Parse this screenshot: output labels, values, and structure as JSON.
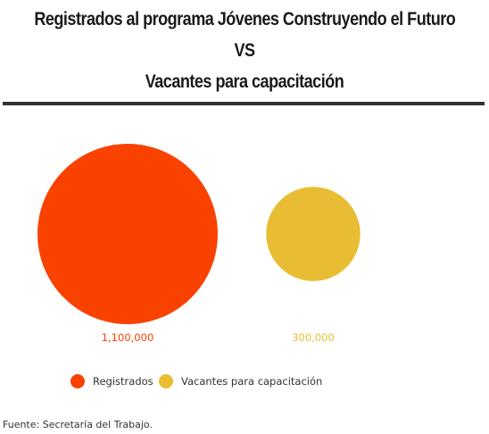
{
  "title": {
    "line1": "Registrados al programa Jóvenes Construyendo el Futuro",
    "line2": "VS",
    "line3": "Vacantes para capacitación"
  },
  "source": "Fuente: Secretaría del Trabajo.",
  "chart_data": {
    "type": "bubble",
    "series": [
      {
        "name": "Registrados",
        "value": 1100000,
        "label": "1,100,000",
        "color": "#f94200"
      },
      {
        "name": "Vacantes para capacitación",
        "value": 300000,
        "label": "300,000",
        "color": "#e8bd33"
      }
    ],
    "legend_position": "bottom",
    "grid": false
  }
}
